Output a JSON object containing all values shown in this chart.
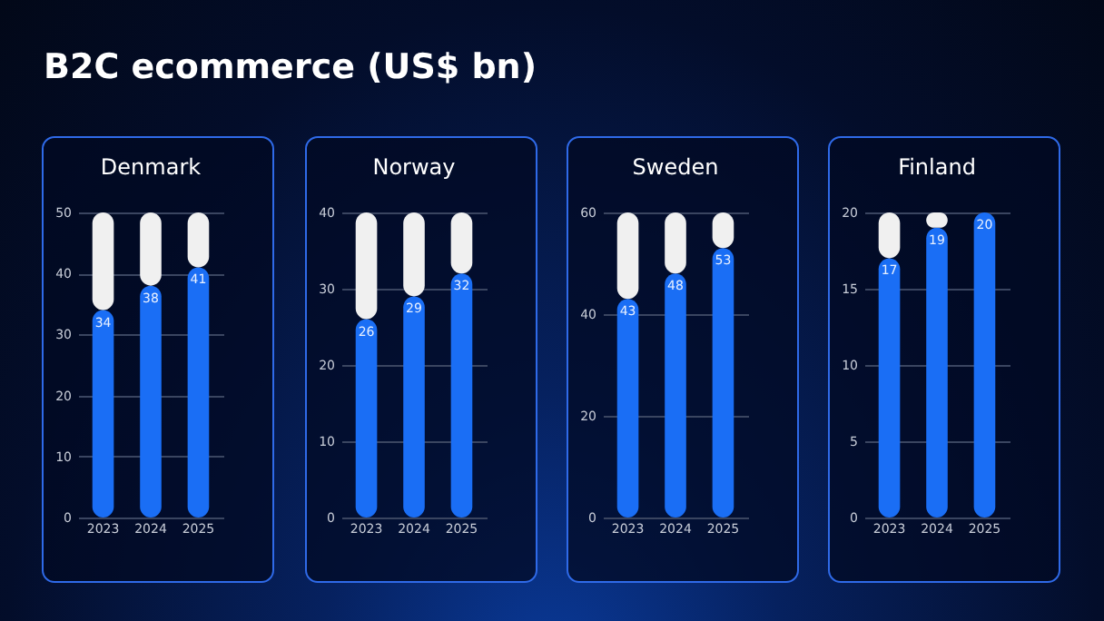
{
  "chart_data": [
    {
      "type": "other",
      "title": "B2C ecommerce (US$ bn)"
    },
    {
      "type": "bar",
      "title": "Denmark",
      "stacked": true,
      "categories": [
        "2023",
        "2024",
        "2025"
      ],
      "series": [
        {
          "color": "#1a6ef5",
          "values": [
            34,
            38,
            41
          ],
          "value_labels": [
            "34",
            "38",
            "41"
          ]
        },
        {
          "color": "#f0f0f0",
          "values": [
            16,
            12,
            9
          ]
        }
      ],
      "ylim": [
        0,
        50
      ],
      "yticks": [
        0,
        10,
        20,
        30,
        40,
        50
      ],
      "grid": "y"
    },
    {
      "type": "bar",
      "title": "Norway",
      "stacked": true,
      "categories": [
        "2023",
        "2024",
        "2025"
      ],
      "series": [
        {
          "color": "#1a6ef5",
          "values": [
            26,
            29,
            32
          ],
          "value_labels": [
            "26",
            "29",
            "32"
          ]
        },
        {
          "color": "#f0f0f0",
          "values": [
            14,
            11,
            8
          ]
        }
      ],
      "ylim": [
        0,
        40
      ],
      "yticks": [
        0,
        10,
        20,
        30,
        40
      ],
      "grid": "y"
    },
    {
      "type": "bar",
      "title": "Sweden",
      "stacked": true,
      "categories": [
        "2023",
        "2024",
        "2025"
      ],
      "series": [
        {
          "color": "#1a6ef5",
          "values": [
            43,
            48,
            53
          ],
          "value_labels": [
            "43",
            "48",
            "53"
          ]
        },
        {
          "color": "#f0f0f0",
          "values": [
            17,
            12,
            7
          ]
        }
      ],
      "ylim": [
        0,
        60
      ],
      "yticks": [
        0,
        20,
        40,
        60
      ],
      "grid": "y"
    },
    {
      "type": "bar",
      "title": "Finland",
      "stacked": true,
      "categories": [
        "2023",
        "2024",
        "2025"
      ],
      "series": [
        {
          "color": "#1a6ef5",
          "values": [
            17,
            19,
            20
          ],
          "value_labels": [
            "17",
            "19",
            "20"
          ]
        },
        {
          "color": "#f0f0f0",
          "values": [
            3,
            1,
            0
          ]
        }
      ],
      "ylim": [
        0,
        20
      ],
      "yticks": [
        0,
        5,
        10,
        15,
        20
      ],
      "grid": "y"
    }
  ]
}
